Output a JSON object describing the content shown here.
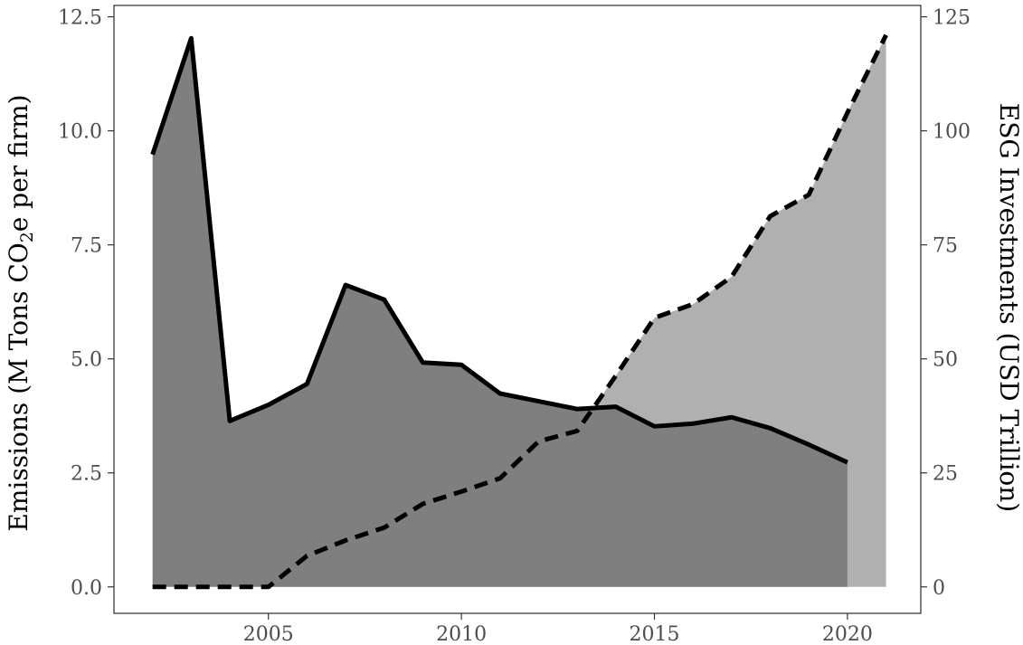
{
  "chart_data": {
    "type": "area",
    "xlim": [
      2001.0,
      2021.9
    ],
    "x_ticks": [
      2005,
      2010,
      2015,
      2020
    ],
    "x_tick_labels": [
      "2005",
      "2010",
      "2015",
      "2020"
    ],
    "y_left": {
      "label": "Emissions (M Tons CO2e per firm)",
      "label_parts": [
        "Emissions (M Tons CO",
        "2",
        "e per firm)"
      ],
      "lim": [
        -0.58,
        12.75
      ],
      "ticks": [
        0,
        2.5,
        5,
        7.5,
        10,
        12.5
      ],
      "tick_labels": [
        "0.0",
        "2.5",
        "5.0",
        "7.5",
        "10.0",
        "12.5"
      ]
    },
    "y_right": {
      "label": "ESG Investments (USD Trillion)",
      "lim": [
        -5.8,
        127.5
      ],
      "ticks": [
        0,
        25,
        50,
        75,
        100,
        125
      ],
      "tick_labels": [
        "0",
        "25",
        "50",
        "75",
        "100",
        "125"
      ]
    },
    "series": [
      {
        "axis": "left",
        "line_style": "solid",
        "fill_color": "#7f7f7f",
        "x": [
          2002,
          2003,
          2004,
          2005,
          2006,
          2007,
          2008,
          2009,
          2010,
          2011,
          2012,
          2013,
          2014,
          2015,
          2016,
          2017,
          2018,
          2019,
          2020
        ],
        "values": [
          9.48,
          12.03,
          3.64,
          3.99,
          4.45,
          6.62,
          6.3,
          4.92,
          4.87,
          4.24,
          4.07,
          3.9,
          3.95,
          3.52,
          3.58,
          3.72,
          3.48,
          3.12,
          2.73
        ]
      },
      {
        "axis": "right",
        "line_style": "dashed",
        "fill_color": "#b0b0b0",
        "x": [
          2002,
          2003,
          2004,
          2005,
          2006,
          2007,
          2008,
          2009,
          2010,
          2011,
          2012,
          2013,
          2014,
          2015,
          2016,
          2017,
          2018,
          2019,
          2020,
          2021
        ],
        "values": [
          0,
          0,
          0,
          0,
          6.8,
          10.2,
          13.0,
          18.2,
          20.9,
          23.8,
          31.9,
          34.2,
          46.3,
          59.0,
          62.0,
          68.0,
          81.3,
          86.0,
          104.0,
          121.0
        ]
      }
    ],
    "grid": false,
    "legend": "none"
  }
}
